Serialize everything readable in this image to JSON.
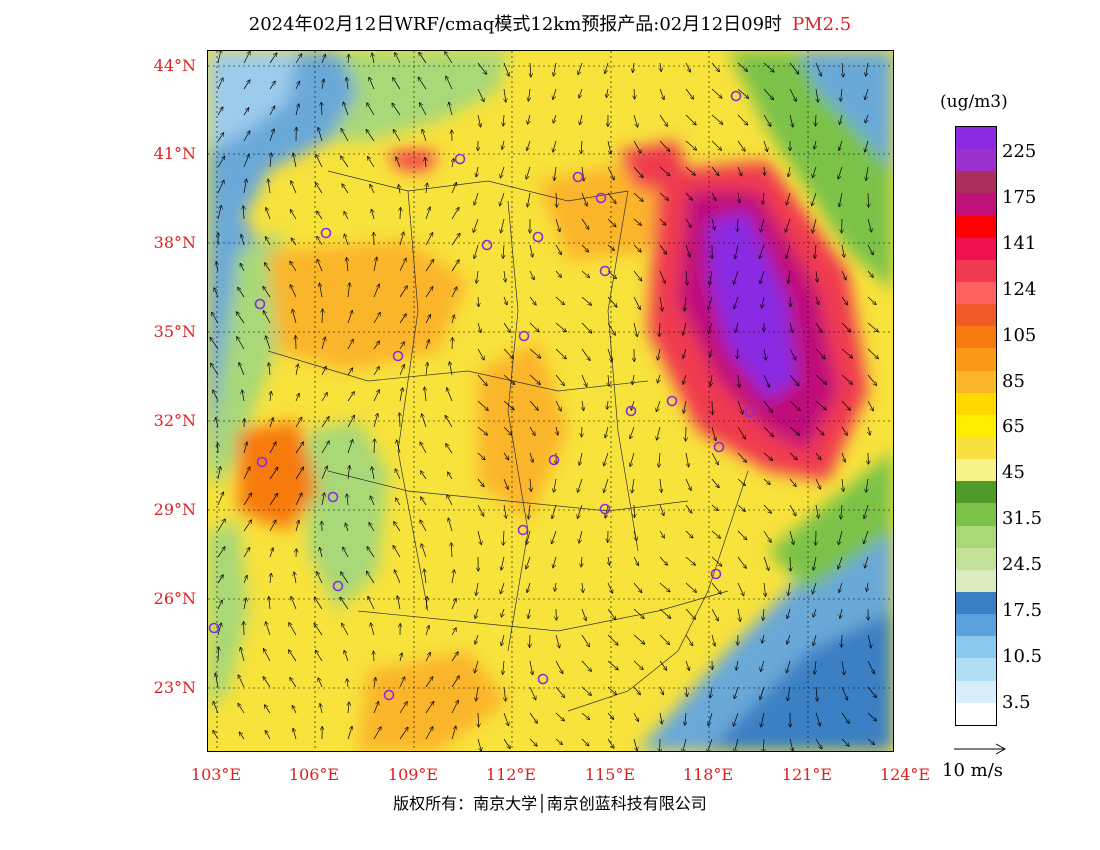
{
  "header": {
    "title": "2024年02月12日WRF/cmaq模式12km预报产品:02月12日09时",
    "pollutant": "PM2.5"
  },
  "axes": {
    "lat_labels": [
      "44°N",
      "41°N",
      "38°N",
      "35°N",
      "32°N",
      "29°N",
      "26°N",
      "23°N"
    ],
    "lon_labels": [
      "103°E",
      "106°E",
      "109°E",
      "112°E",
      "115°E",
      "118°E",
      "121°E",
      "124°E"
    ]
  },
  "legend": {
    "unit": "(ug/m3)",
    "colors": [
      "#8a2be2",
      "#9b30d0",
      "#a8305a",
      "#c0107a",
      "#ff0000",
      "#f01050",
      "#f03a50",
      "#ff6060",
      "#f05a28",
      "#f77a10",
      "#fb9a18",
      "#fbb52a",
      "#ffd800",
      "#ffee00",
      "#f7e040",
      "#f6f38a",
      "#4f9a2a",
      "#7cc24a",
      "#a8d878",
      "#c4e29a",
      "#dcecc0",
      "#3b7fc4",
      "#5aa0dc",
      "#8cc8ee",
      "#b0dcf4",
      "#d8eefa",
      "#ffffff"
    ],
    "labels": [
      "225",
      "175",
      "141",
      "124",
      "105",
      "85",
      "65",
      "45",
      "31.5",
      "24.5",
      "17.5",
      "10.5",
      "3.5"
    ]
  },
  "wind": {
    "reference_label": "10 m/s"
  },
  "footer": {
    "copyright": "版权所有：南京大学│南京创蓝科技有限公司"
  }
}
